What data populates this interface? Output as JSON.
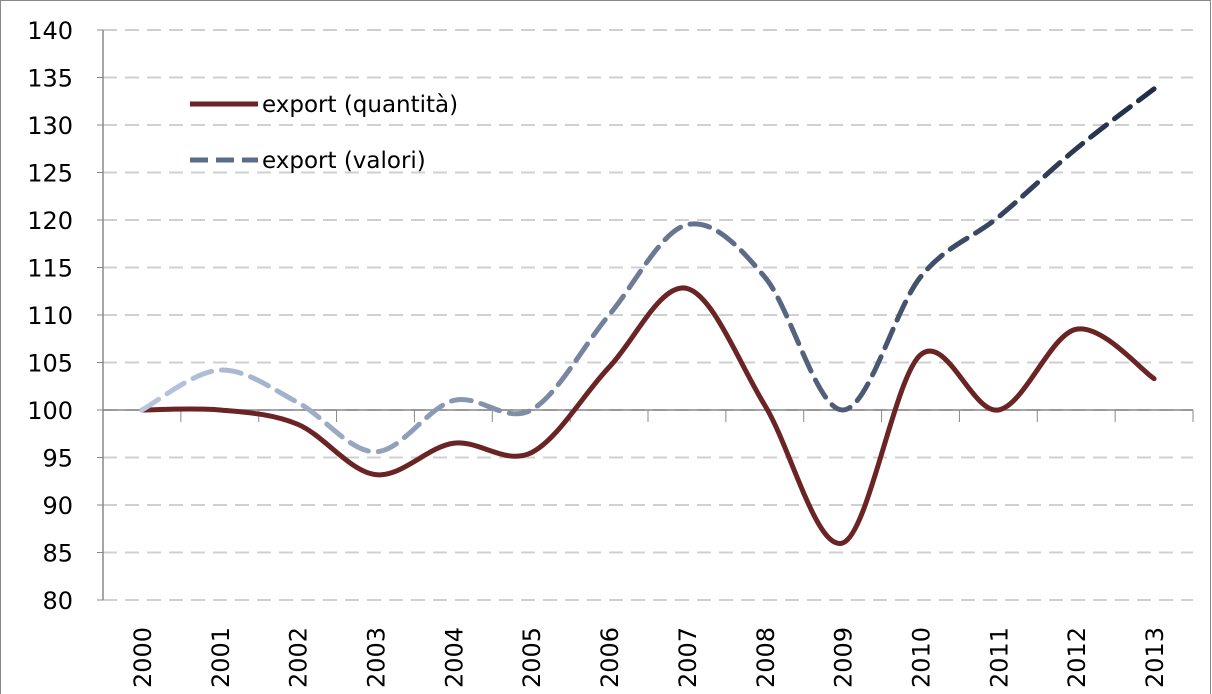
{
  "chart_data": {
    "type": "line",
    "categories": [
      "2000",
      "2001",
      "2002",
      "2003",
      "2004",
      "2005",
      "2006",
      "2007",
      "2008",
      "2009",
      "2010",
      "2011",
      "2012",
      "2013"
    ],
    "series": [
      {
        "name": "export (quantità)",
        "color": "#6b2424",
        "dashed": false,
        "values": [
          100,
          100,
          98.5,
          93.2,
          96.5,
          95.5,
          104.5,
          112.8,
          100.5,
          86,
          105.8,
          100,
          108.5,
          103.3
        ]
      },
      {
        "name": "export (valori)",
        "color": "#1f2d48",
        "gradient_from": "#b8c7e0",
        "dashed": true,
        "values": [
          100,
          104.2,
          100.8,
          95.6,
          101,
          100,
          110,
          119.5,
          114,
          100,
          114,
          120.3,
          127.5,
          133.8
        ]
      }
    ],
    "ylim": [
      80,
      140
    ],
    "yticks": [
      80,
      85,
      90,
      95,
      100,
      105,
      110,
      115,
      120,
      125,
      130,
      135,
      140
    ],
    "category_axis_at": 100,
    "grid": true
  }
}
